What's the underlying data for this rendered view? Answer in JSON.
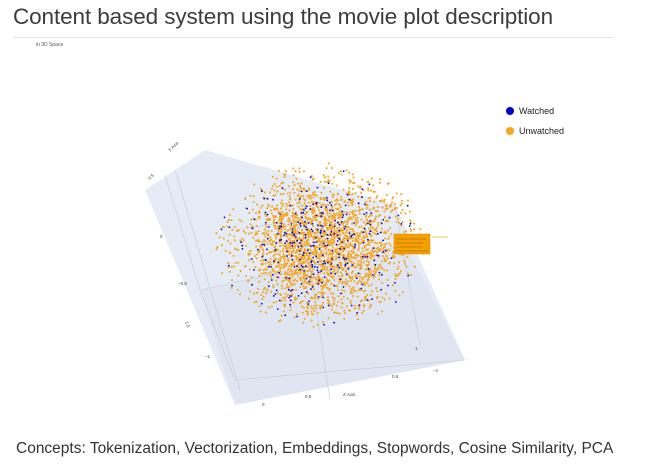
{
  "page": {
    "title": "Content based system using the movie plot description",
    "plot_caption": "in 3D Space",
    "concepts": "Concepts: Tokenization, Vectorization, Embeddings, Stopwords, Cosine Similarity, PCA"
  },
  "legend": {
    "items": [
      {
        "label": "Watched",
        "color": "#0000cc"
      },
      {
        "label": "Unwatched",
        "color": "#f5a623"
      }
    ]
  },
  "scene": {
    "pane_color": "#e5ecf6",
    "hover_box_color": "#f5a000"
  }
}
